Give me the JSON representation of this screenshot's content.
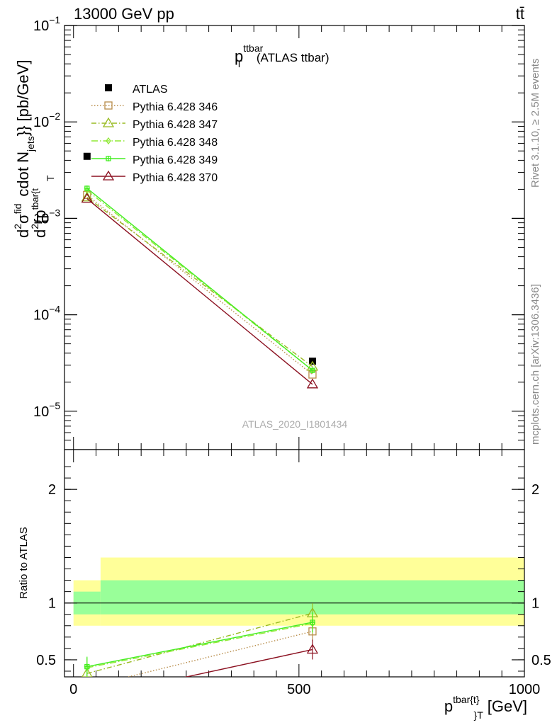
{
  "header": {
    "left": "13000 GeV pp",
    "right": "tt̄"
  },
  "title": {
    "main": "p",
    "sup": "ttbar",
    "sub": "T",
    "suffix": "(ATLAS ttbar)"
  },
  "side_text": {
    "rivet": "Rivet 3.1.10, ≥ 2.5M events",
    "mcplots": "mcplots.cern.ch [arXiv:1306.3436]"
  },
  "watermark": "ATLAS_2020_I1801434",
  "ylabel_top": {
    "d": "d",
    "sigma": "σ",
    "sigma_sup": "fid",
    "d2": "2",
    "denom_d2": "d",
    "denom_p": "{p",
    "denom_sup": "tbar{t",
    "denom_sub": "T",
    "rest": "cdot N",
    "njets_sub": "jets",
    "unit": "}} [pb/GeV]"
  },
  "ylabel_bottom": "Ratio to ATLAS",
  "xlabel": {
    "p": "p",
    "sup": "tbar{t}",
    "sub": "}",
    "subT": "T",
    "unit": "[GeV]"
  },
  "colors": {
    "atlas": "#000000",
    "p346": "#b88d4a",
    "p347": "#99bb22",
    "p348": "#8fe834",
    "p349": "#44ee22",
    "p370": "#8b1020",
    "band_inner": "#99ff99",
    "band_outer": "#ffff99"
  },
  "chart_data": [
    {
      "type": "line",
      "scale": "log",
      "xlim": [
        -20,
        1000
      ],
      "ylim": [
        4e-06,
        0.1
      ],
      "y_ticks": [
        {
          "base": "10",
          "exp": "−5",
          "value": 1e-05
        },
        {
          "base": "10",
          "exp": "−4",
          "value": 0.0001
        },
        {
          "base": "10",
          "exp": "−3",
          "value": 0.001
        },
        {
          "base": "10",
          "exp": "−2",
          "value": 0.01
        },
        {
          "base": "10",
          "exp": "−1",
          "value": 0.1
        }
      ],
      "legend": "top-left",
      "series": [
        {
          "name": "ATLAS",
          "x": [
            30,
            530
          ],
          "values": [
            0.0044,
            3.3e-05
          ]
        },
        {
          "name": "Pythia 6.428 346",
          "x": [
            30,
            530
          ],
          "values": [
            0.00175,
            2.4e-05
          ]
        },
        {
          "name": "Pythia 6.428 347",
          "x": [
            30,
            530
          ],
          "values": [
            0.00165,
            2.9e-05
          ]
        },
        {
          "name": "Pythia 6.428 348",
          "x": [
            30,
            530
          ],
          "values": [
            0.00195,
            2.65e-05
          ]
        },
        {
          "name": "Pythia 6.428 349",
          "x": [
            30,
            530
          ],
          "values": [
            0.00205,
            2.65e-05
          ]
        },
        {
          "name": "Pythia 6.428 370",
          "x": [
            30,
            530
          ],
          "values": [
            0.0016,
            1.9e-05
          ]
        }
      ]
    },
    {
      "type": "line",
      "xlim": [
        -20,
        1000
      ],
      "ylim": [
        0.35,
        2.35
      ],
      "y_ticks": [
        "0.5",
        "1",
        "2"
      ],
      "y_tick_values": [
        0.5,
        1,
        2
      ],
      "x_ticks": [
        "0",
        "500",
        "1000"
      ],
      "x_tick_values": [
        0,
        500,
        1000
      ],
      "bands": [
        {
          "x": [
            0,
            60
          ],
          "inner": [
            0.9,
            1.1
          ],
          "outer": [
            0.8,
            1.2
          ]
        },
        {
          "x": [
            60,
            1000
          ],
          "inner": [
            0.9,
            1.2
          ],
          "outer": [
            0.8,
            1.4
          ]
        }
      ],
      "series": [
        {
          "name": "Pythia 6.428 346",
          "x": [
            30,
            530
          ],
          "values": [
            0.26,
            0.75
          ]
        },
        {
          "name": "Pythia 6.428 347",
          "x": [
            30,
            530
          ],
          "values": [
            0.38,
            0.91
          ]
        },
        {
          "name": "Pythia 6.428 348",
          "x": [
            30,
            530
          ],
          "values": [
            0.43,
            0.82
          ]
        },
        {
          "name": "Pythia 6.428 349",
          "x": [
            30,
            530
          ],
          "values": [
            0.44,
            0.83
          ]
        },
        {
          "name": "Pythia 6.428 370",
          "x": [
            30,
            530
          ],
          "values": [
            0.16,
            0.59
          ]
        }
      ]
    }
  ]
}
